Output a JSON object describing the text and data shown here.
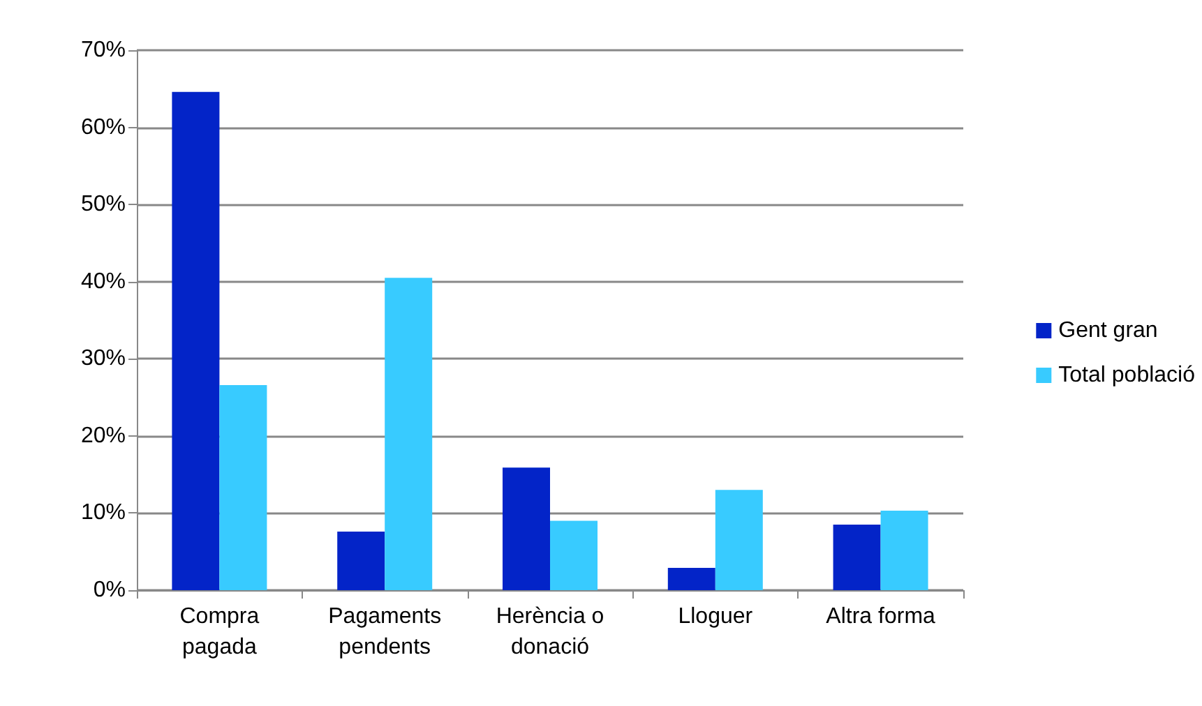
{
  "chart_data": {
    "type": "bar",
    "categories": [
      "Compra\npagada",
      "Pagaments\npendents",
      "Herència o\ndonació",
      "Lloguer",
      "Altra forma"
    ],
    "series": [
      {
        "name": "Gent gran",
        "color": "#0324c8",
        "values": [
          64.6,
          7.6,
          15.9,
          2.9,
          8.5
        ]
      },
      {
        "name": "Total població",
        "color": "#38cbff",
        "values": [
          26.6,
          40.5,
          9.0,
          13.0,
          10.3
        ]
      }
    ],
    "ylim": [
      0,
      70
    ],
    "yticks": [
      {
        "value": 0,
        "label": "0%"
      },
      {
        "value": 10,
        "label": "10%"
      },
      {
        "value": 20,
        "label": "20%"
      },
      {
        "value": 30,
        "label": "30%"
      },
      {
        "value": 40,
        "label": "40%"
      },
      {
        "value": 50,
        "label": "50%"
      },
      {
        "value": 60,
        "label": "60%"
      },
      {
        "value": 70,
        "label": "70%"
      }
    ],
    "grid": "y",
    "legend": "right"
  }
}
